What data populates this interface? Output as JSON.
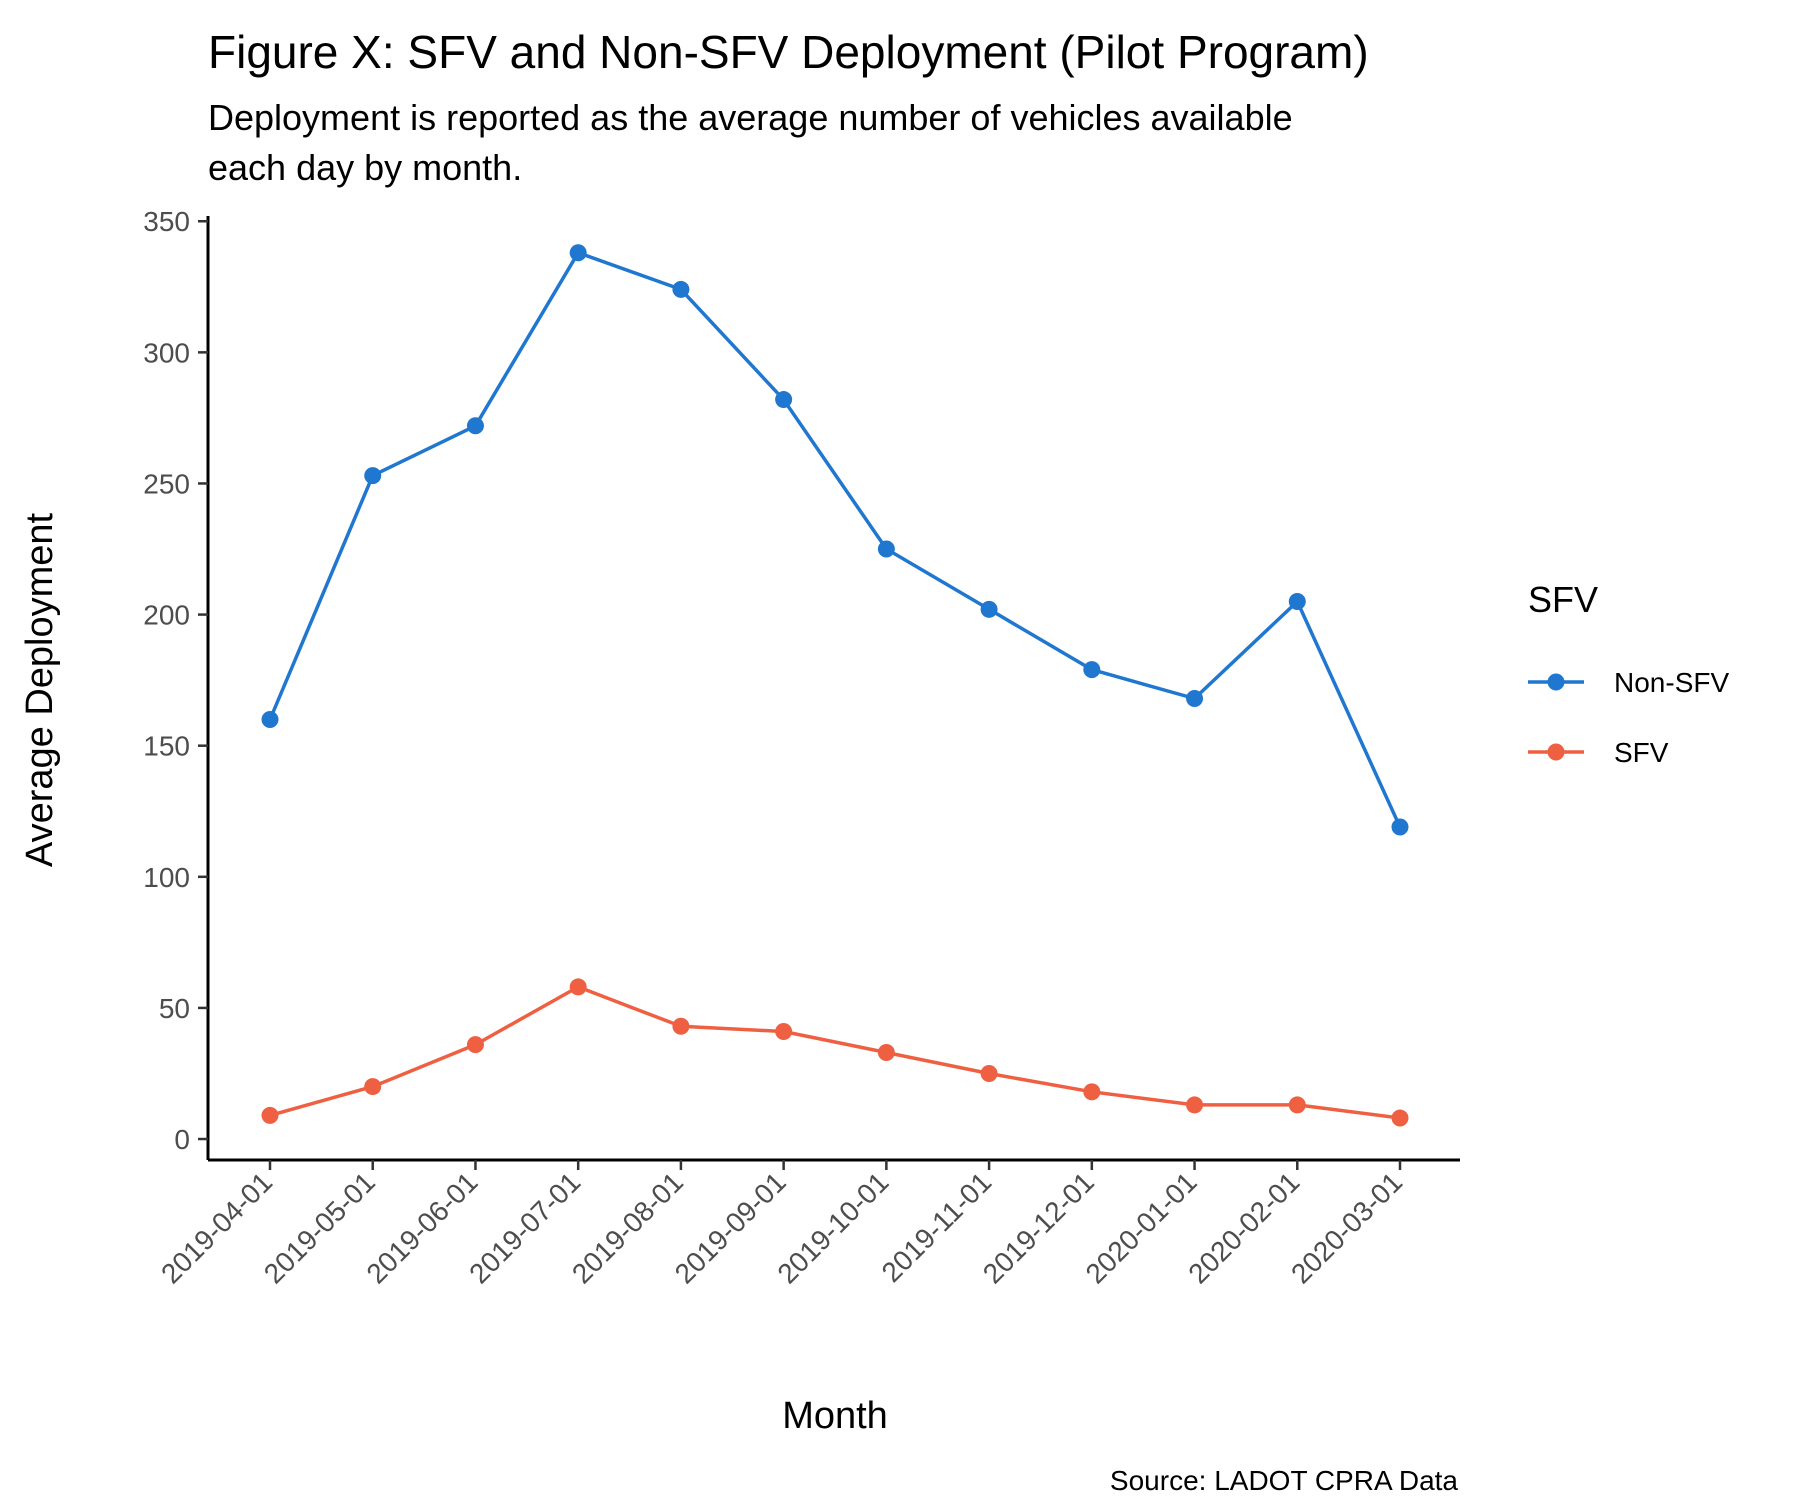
{
  "chart_data": {
    "type": "line",
    "title": "Figure X: SFV and Non-SFV Deployment (Pilot Program)",
    "subtitle_lines": [
      "Deployment is reported as the average number of vehicles available",
      "each day by month."
    ],
    "xlabel": "Month",
    "ylabel": "Average Deployment",
    "caption": "Source: LADOT CPRA Data",
    "x": [
      "2019-04-01",
      "2019-05-01",
      "2019-06-01",
      "2019-07-01",
      "2019-08-01",
      "2019-09-01",
      "2019-10-01",
      "2019-11-01",
      "2019-12-01",
      "2020-01-01",
      "2020-02-01",
      "2020-03-01"
    ],
    "y_ticks": [
      0,
      50,
      100,
      150,
      200,
      250,
      300,
      350
    ],
    "ylim": [
      -8,
      352
    ],
    "grid": false,
    "legend": {
      "title": "SFV",
      "position": "right"
    },
    "series": [
      {
        "name": "Non-SFV",
        "color": "#1f77d0",
        "values": [
          160,
          253,
          272,
          338,
          324,
          282,
          225,
          202,
          179,
          168,
          205,
          119
        ]
      },
      {
        "name": "SFV",
        "color": "#ee6041",
        "values": [
          9,
          20,
          36,
          58,
          43,
          41,
          33,
          25,
          18,
          13,
          13,
          8
        ]
      }
    ]
  }
}
